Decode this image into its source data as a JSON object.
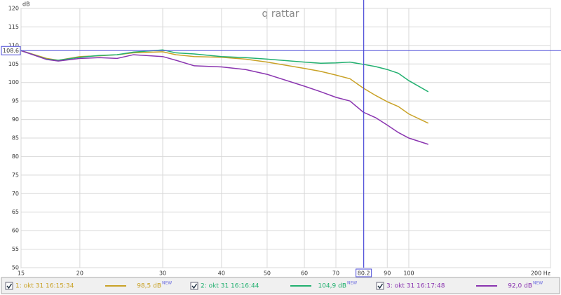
{
  "chart_data": {
    "type": "line",
    "title": "q rattar",
    "y_unit": "dB",
    "x_unit": "Hz",
    "log_x": true,
    "grid": true,
    "xlim": [
      15,
      200
    ],
    "ylim": [
      50,
      120
    ],
    "xticks": [
      15,
      20,
      30,
      40,
      50,
      60,
      70,
      90,
      100,
      {
        "value": 200,
        "label": "200 Hz"
      }
    ],
    "yticks": [
      50,
      55,
      60,
      65,
      70,
      75,
      80,
      85,
      90,
      95,
      100,
      105,
      110,
      115,
      120
    ],
    "cursor": {
      "x": 80.2,
      "y": 108.6,
      "color": "#4a4ad8"
    },
    "x": [
      15,
      17,
      18,
      20,
      22,
      24,
      26,
      30,
      32,
      35,
      40,
      45,
      50,
      60,
      65,
      70,
      75,
      80,
      85,
      90,
      95,
      100,
      110
    ],
    "series": [
      {
        "name": "1: okt 31 16:15:34",
        "color": "#c9a227",
        "readout": "98,5 dB",
        "readout_tag": "NEW",
        "values": [
          108.6,
          106.5,
          106,
          107,
          107.2,
          107.5,
          108,
          108.3,
          107.5,
          107,
          106.8,
          106.3,
          105.5,
          103.8,
          103,
          102,
          101,
          98.5,
          96.5,
          94.8,
          93.5,
          91.5,
          89
        ]
      },
      {
        "name": "2: okt 31 16:16:44",
        "color": "#22b070",
        "readout": "104,9 dB",
        "readout_tag": "NEW",
        "values": [
          108.6,
          106.3,
          106,
          106.8,
          107.3,
          107.5,
          108.2,
          108.8,
          108,
          107.7,
          107,
          106.7,
          106.3,
          105.5,
          105.2,
          105.3,
          105.5,
          104.9,
          104.3,
          103.5,
          102.5,
          100.5,
          97.5
        ]
      },
      {
        "name": "3: okt 31 16:17:48",
        "color": "#8a35b0",
        "readout": "92,0 dB",
        "readout_tag": "NEW",
        "values": [
          108.6,
          106.2,
          105.8,
          106.5,
          106.7,
          106.5,
          107.5,
          107,
          106,
          104.5,
          104.2,
          103.5,
          102.2,
          99,
          97.5,
          96,
          95,
          92,
          90.5,
          88.5,
          86.5,
          85,
          83.3
        ]
      }
    ]
  }
}
